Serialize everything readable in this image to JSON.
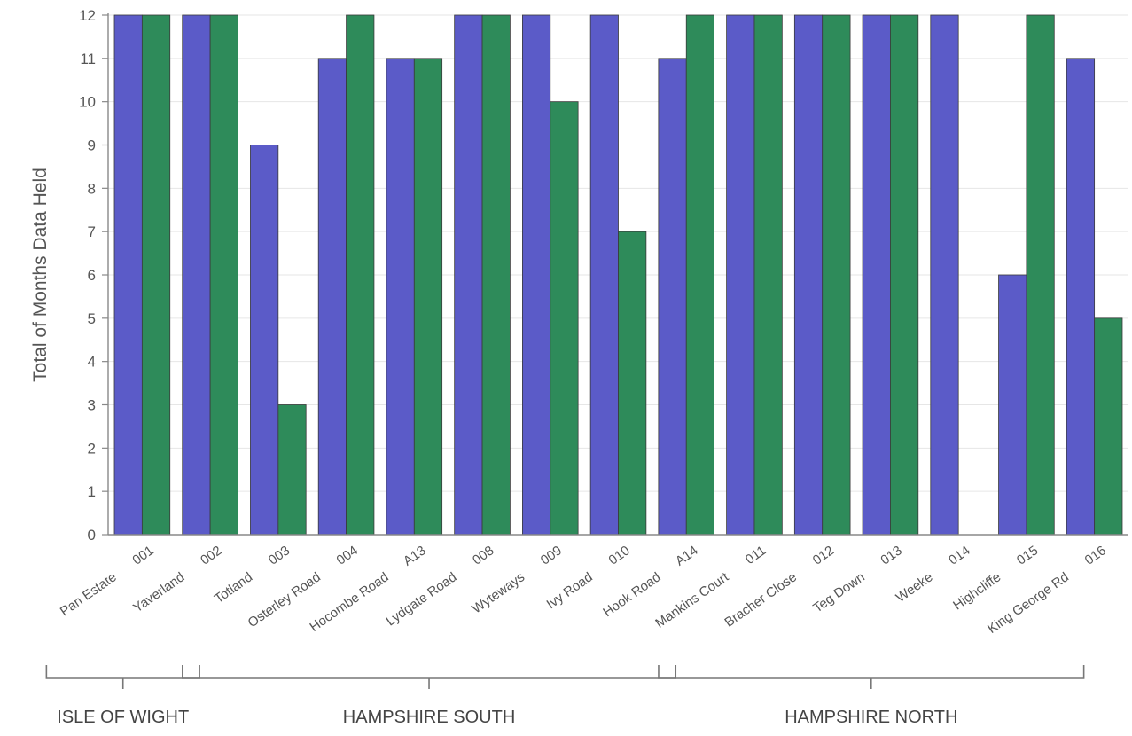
{
  "chart_data": {
    "type": "bar",
    "title": "",
    "xlabel": "",
    "ylabel": "Total of Months Data Held",
    "ylim": [
      0,
      12
    ],
    "yticks": [
      0,
      1,
      2,
      3,
      4,
      5,
      6,
      7,
      8,
      9,
      10,
      11,
      12
    ],
    "grid": true,
    "legend": "none",
    "colors": [
      "#5b5bc8",
      "#2e8b5a"
    ],
    "category_codes": [
      "001",
      "002",
      "003",
      "004",
      "A13",
      "008",
      "009",
      "010",
      "A14",
      "011",
      "012",
      "013",
      "014",
      "015",
      "016"
    ],
    "category_names": [
      "Pan Estate",
      "Yaverland",
      "Totland",
      "Osterley Road",
      "Hocombe Road",
      "Lydgate Road",
      "Wyteways",
      "Ivy Road",
      "Hook Road",
      "Mankins Court",
      "Bracher Close",
      "Teg Down",
      "Weeke",
      "Highcliffe",
      "King George Rd"
    ],
    "series": [
      {
        "values": [
          12,
          12,
          9,
          11,
          11,
          12,
          12,
          12,
          11,
          12,
          12,
          12,
          12,
          6,
          11
        ]
      },
      {
        "values": [
          12,
          12,
          3,
          12,
          11,
          12,
          10,
          7,
          12,
          12,
          12,
          12,
          0,
          12,
          5
        ]
      }
    ],
    "groups": [
      {
        "label": "ISLE OF WIGHT",
        "start": 0,
        "end": 1
      },
      {
        "label": "HAMPSHIRE SOUTH",
        "start": 2,
        "end": 8
      },
      {
        "label": "HAMPSHIRE NORTH",
        "start": 9,
        "end": 14
      }
    ]
  }
}
